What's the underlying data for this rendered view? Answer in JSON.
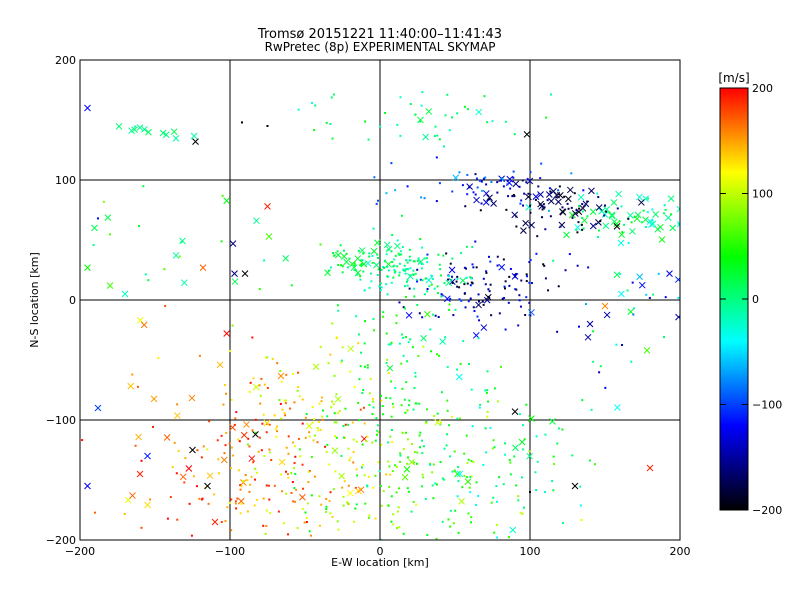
{
  "chart_data": {
    "type": "scatter",
    "title": "Tromsø 20151221 11:40:00–11:41:43",
    "subtitle": "RwPretec (8p) EXPERIMENTAL SKYMAP",
    "xlabel": "E-W location [km]",
    "ylabel": "N-S location [km]",
    "xlim": [
      -200,
      200
    ],
    "ylim": [
      -200,
      200
    ],
    "xticks": [
      -200,
      -100,
      0,
      100,
      200
    ],
    "yticks": [
      -200,
      -100,
      0,
      100,
      200
    ],
    "xtick_labels": [
      "−200",
      "−100",
      "0",
      "100",
      "200"
    ],
    "ytick_labels": [
      "−200",
      "−100",
      "0",
      "100",
      "200"
    ],
    "grid": true,
    "colorbar": {
      "label": "[m/s]",
      "range": [
        -200,
        200
      ],
      "ticks": [
        200,
        100,
        0,
        -100,
        -200
      ],
      "tick_labels": [
        "200",
        "100",
        "0",
        "−100",
        "−200"
      ],
      "colors": [
        "#ff0000",
        "#ffff00",
        "#00ff00",
        "#00ffff",
        "#0000ff",
        "#000000"
      ]
    },
    "markers": [
      "dot",
      "cross"
    ],
    "clusters": [
      {
        "x": 165,
        "y": 68,
        "spread": [
          25,
          10
        ],
        "n": 70,
        "v": [
          -40,
          40
        ],
        "cross": 0.5
      },
      {
        "x": 125,
        "y": 75,
        "spread": [
          20,
          10
        ],
        "n": 70,
        "v": [
          -200,
          -150
        ],
        "cross": 0.35
      },
      {
        "x": 85,
        "y": 90,
        "spread": [
          18,
          8
        ],
        "n": 40,
        "v": [
          -180,
          -120
        ],
        "cross": 0.2
      },
      {
        "x": 65,
        "y": 10,
        "spread": [
          25,
          18
        ],
        "n": 120,
        "v": [
          -200,
          -100
        ],
        "cross": 0.1
      },
      {
        "x": 15,
        "y": 28,
        "spread": [
          20,
          10
        ],
        "n": 140,
        "v": [
          -30,
          30
        ],
        "cross": 0.1
      },
      {
        "x": -20,
        "y": 32,
        "spread": [
          6,
          6
        ],
        "n": 25,
        "v": [
          10,
          40
        ],
        "cross": 0.4
      },
      {
        "x": -150,
        "y": 140,
        "spread": [
          12,
          3
        ],
        "n": 12,
        "v": [
          -20,
          20
        ],
        "cross": 0.8
      },
      {
        "x": 30,
        "y": 150,
        "spread": [
          45,
          12
        ],
        "n": 45,
        "v": [
          -30,
          40
        ],
        "cross": 0.1
      },
      {
        "x": 60,
        "y": 100,
        "spread": [
          35,
          10
        ],
        "n": 40,
        "v": [
          -120,
          -60
        ],
        "cross": 0.1
      },
      {
        "x": 20,
        "y": -60,
        "spread": [
          25,
          40
        ],
        "n": 120,
        "v": [
          -20,
          60
        ],
        "cross": 0.05
      },
      {
        "x": -75,
        "y": -140,
        "spread": [
          35,
          40
        ],
        "n": 170,
        "v": [
          130,
          200
        ],
        "cross": 0.08
      },
      {
        "x": -40,
        "y": -110,
        "spread": [
          30,
          45
        ],
        "n": 120,
        "v": [
          80,
          140
        ],
        "cross": 0.05
      },
      {
        "x": 25,
        "y": -140,
        "spread": [
          45,
          40
        ],
        "n": 170,
        "v": [
          20,
          110
        ],
        "cross": 0.06
      },
      {
        "x": 85,
        "y": -140,
        "spread": [
          40,
          40
        ],
        "n": 80,
        "v": [
          -40,
          40
        ],
        "cross": 0.08
      },
      {
        "x": -140,
        "y": -120,
        "spread": [
          30,
          50
        ],
        "n": 40,
        "v": [
          100,
          200
        ],
        "cross": 0.35
      },
      {
        "x": 160,
        "y": -5,
        "spread": [
          30,
          30
        ],
        "n": 35,
        "v": [
          -150,
          30
        ],
        "cross": 0.3
      },
      {
        "x": -120,
        "y": 40,
        "spread": [
          50,
          25
        ],
        "n": 30,
        "v": [
          -20,
          80
        ],
        "cross": 0.3
      }
    ],
    "points": [
      {
        "x": 98,
        "y": 138,
        "v": -200,
        "m": "cross"
      },
      {
        "x": -123,
        "y": 132,
        "v": -200,
        "m": "cross"
      },
      {
        "x": -92,
        "y": 148,
        "v": -200,
        "m": "dot"
      },
      {
        "x": -195,
        "y": 160,
        "v": -120,
        "m": "cross"
      },
      {
        "x": -188,
        "y": 68,
        "v": -120,
        "m": "dot"
      },
      {
        "x": -195,
        "y": 27,
        "v": 40,
        "m": "cross"
      },
      {
        "x": -180,
        "y": 12,
        "v": 60,
        "m": "cross"
      },
      {
        "x": -170,
        "y": 5,
        "v": -20,
        "m": "cross"
      },
      {
        "x": -118,
        "y": 27,
        "v": 170,
        "m": "cross"
      },
      {
        "x": -98,
        "y": 47,
        "v": -160,
        "m": "cross"
      },
      {
        "x": -97,
        "y": 22,
        "v": -160,
        "m": "cross"
      },
      {
        "x": -90,
        "y": 22,
        "v": -200,
        "m": "cross"
      },
      {
        "x": -195,
        "y": -155,
        "v": -120,
        "m": "cross"
      },
      {
        "x": -188,
        "y": -90,
        "v": -100,
        "m": "cross"
      },
      {
        "x": -125,
        "y": -125,
        "v": -200,
        "m": "cross"
      },
      {
        "x": -115,
        "y": -155,
        "v": -200,
        "m": "cross"
      },
      {
        "x": -83,
        "y": -112,
        "v": -200,
        "m": "cross"
      },
      {
        "x": -110,
        "y": -185,
        "v": 190,
        "m": "cross"
      },
      {
        "x": -160,
        "y": -145,
        "v": 190,
        "m": "cross"
      },
      {
        "x": -155,
        "y": -130,
        "v": -110,
        "m": "cross"
      },
      {
        "x": 130,
        "y": -155,
        "v": -200,
        "m": "cross"
      },
      {
        "x": 90,
        "y": -93,
        "v": -200,
        "m": "cross"
      },
      {
        "x": 180,
        "y": -140,
        "v": 190,
        "m": "cross"
      },
      {
        "x": 193,
        "y": 22,
        "v": -130,
        "m": "cross"
      },
      {
        "x": 178,
        "y": -42,
        "v": 60,
        "m": "cross"
      },
      {
        "x": 100,
        "y": -160,
        "v": -200,
        "m": "dot"
      },
      {
        "x": -75,
        "y": 78,
        "v": 190,
        "m": "cross"
      },
      {
        "x": -75,
        "y": 145,
        "v": -200,
        "m": "dot"
      },
      {
        "x": 150,
        "y": -5,
        "v": 160,
        "m": "cross"
      },
      {
        "x": 140,
        "y": -20,
        "v": -150,
        "m": "cross"
      }
    ]
  }
}
